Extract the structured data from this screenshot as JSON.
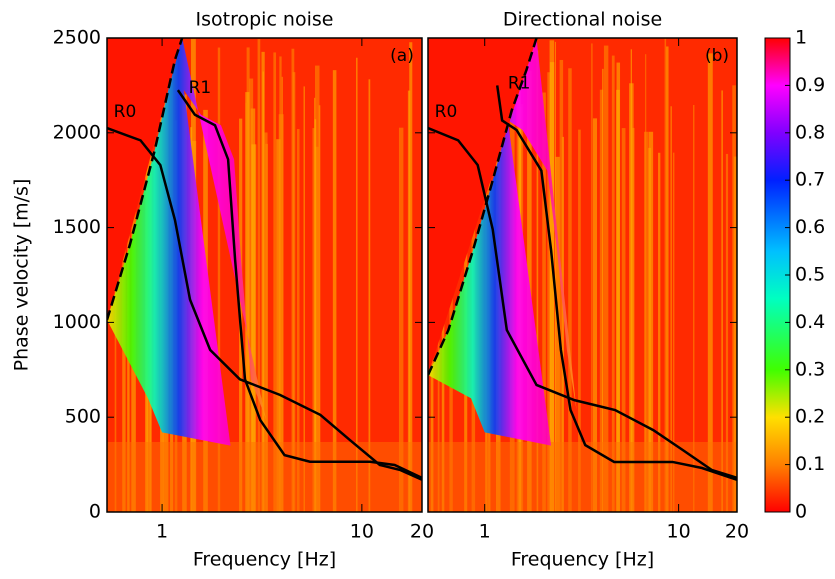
{
  "chart_data": [
    {
      "type": "line",
      "title": "Isotropic noise",
      "x_label": "Frequency [Hz]",
      "y_label": "Phase velocity [m/s]",
      "xscale": "log",
      "xlim": [
        0.53,
        20
      ],
      "xticks": [
        1,
        10,
        20
      ],
      "ylim": [
        0,
        2500
      ],
      "yticks": [
        0,
        500,
        1000,
        1500,
        2000,
        2500
      ],
      "annotations": [
        "R0",
        "R1",
        "(a)"
      ],
      "series": [
        {
          "name": "R0",
          "color": "#000000",
          "x": [
            0.53,
            0.78,
            0.98,
            1.16,
            1.38,
            1.74,
            2.45,
            3.9,
            6.2,
            8.7,
            12.3,
            15.5,
            20
          ],
          "values": [
            2025,
            1960,
            1830,
            1540,
            1120,
            855,
            700,
            617,
            512,
            380,
            248,
            222,
            170
          ]
        },
        {
          "name": "R1",
          "color": "#000000",
          "x": [
            1.2,
            1.46,
            1.84,
            2.14,
            2.32,
            2.6,
            3.1,
            4.1,
            5.5,
            11,
            14.6,
            20
          ],
          "values": [
            2225,
            2095,
            2040,
            1860,
            1330,
            700,
            485,
            300,
            265,
            265,
            248,
            180
          ]
        },
        {
          "color": "#000000",
          "dashed": true,
          "x": [
            0.53,
            0.69,
            0.92,
            1.16,
            1.26
          ],
          "values": [
            1013,
            1410,
            1910,
            2385,
            2500
          ]
        }
      ]
    },
    {
      "type": "line",
      "title": "Directional noise",
      "x_label": "Frequency [Hz]",
      "xscale": "log",
      "xlim": [
        0.51,
        20
      ],
      "xticks": [
        1,
        10,
        20
      ],
      "ylim": [
        0,
        2500
      ],
      "yticks": [
        0,
        500,
        1000,
        1500,
        2000,
        2500
      ],
      "annotations": [
        "R0",
        "R1",
        "(b)"
      ],
      "series": [
        {
          "name": "R0",
          "color": "#000000",
          "x": [
            0.51,
            0.73,
            0.92,
            1.1,
            1.3,
            1.85,
            2.9,
            4.7,
            7.4,
            10.5,
            14.8,
            20
          ],
          "values": [
            2025,
            1960,
            1830,
            1490,
            960,
            670,
            590,
            538,
            432,
            327,
            222,
            180
          ]
        },
        {
          "name": "R1",
          "color": "#000000",
          "x": [
            1.16,
            1.23,
            1.46,
            1.96,
            2.2,
            2.47,
            2.77,
            3.3,
            4.65,
            9.3,
            13.2,
            20
          ],
          "values": [
            2250,
            2065,
            2015,
            1800,
            1380,
            855,
            538,
            353,
            264,
            264,
            232,
            170
          ]
        },
        {
          "color": "#000000",
          "dashed": true,
          "x": [
            0.51,
            0.65,
            0.87,
            1.1,
            1.38,
            1.64,
            1.85
          ],
          "values": [
            722,
            960,
            1380,
            1750,
            2120,
            2330,
            2500
          ]
        }
      ]
    },
    {
      "type": "colorbar",
      "clim": [
        0,
        1
      ],
      "ticks": [
        0,
        0.1,
        0.2,
        0.3,
        0.4,
        0.5,
        0.6,
        0.7,
        0.8,
        0.9,
        1
      ]
    }
  ]
}
